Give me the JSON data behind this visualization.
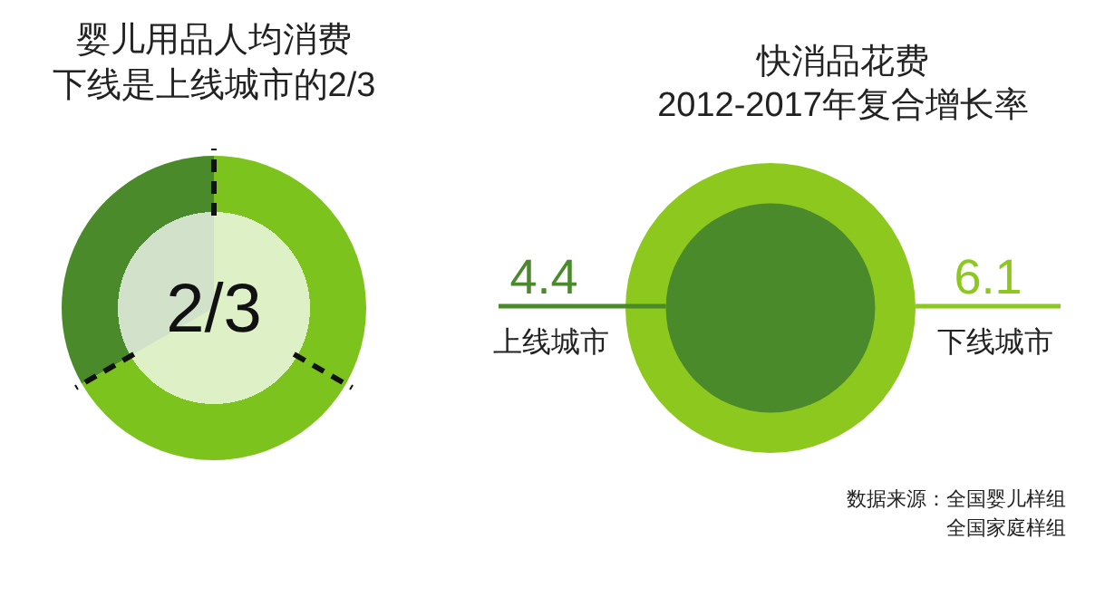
{
  "chart_data": [
    {
      "type": "pie",
      "title": "婴儿用品人均消费",
      "subtitle": "下线是上线城市的2/3",
      "categories": [
        null,
        null
      ],
      "values": [
        66.7,
        33.3
      ],
      "colors": [
        "#7dc31e",
        "#4a8a2a"
      ],
      "annotations": [
        "2/3"
      ]
    },
    {
      "type": "other",
      "title": "快消品花费",
      "subtitle": "2012-2017年复合增长率",
      "categories": [
        "上线城市",
        "下线城市"
      ],
      "values": [
        4.4,
        6.1
      ],
      "colors": [
        "#4a8a2a",
        "#8cc81e"
      ],
      "data_labels": true,
      "annotations": [
        "数据来源：全国婴儿样组",
        "全国家庭样组"
      ]
    }
  ]
}
